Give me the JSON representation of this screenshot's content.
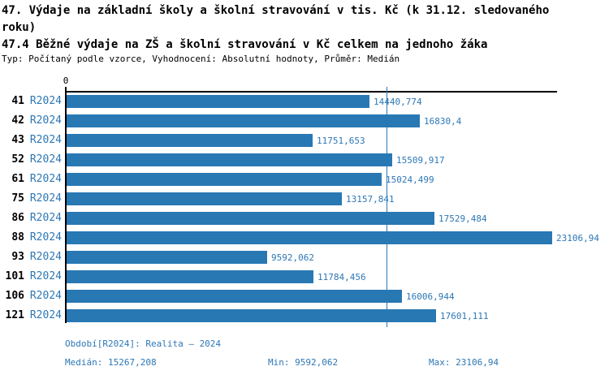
{
  "header": {
    "title": "47. Výdaje na základní školy a školní stravování v tis. Kč (k 31.12. sledovaného roku)",
    "subtitle": "47.4 Běžné výdaje na ZŠ a školní stravování v Kč celkem na jednoho žáka",
    "meta": "Typ: Počítaný podle vzorce, Vyhodnocení: Absolutní hodnoty, Průměr: Medián"
  },
  "colors": {
    "bar": "#2878b4",
    "text_blue": "#2d77b5",
    "axis": "#000000",
    "median_line": "#2878b4"
  },
  "chart_data": {
    "type": "bar",
    "orientation": "horizontal",
    "title": "47.4 Běžné výdaje na ZŠ a školní stravování v Kč celkem na jednoho žáka",
    "categories": [
      "41",
      "42",
      "43",
      "52",
      "61",
      "75",
      "86",
      "88",
      "93",
      "101",
      "106",
      "121"
    ],
    "series_label": "R2024",
    "values": [
      14440.774,
      16830.4,
      11751.653,
      15509.917,
      15024.499,
      13157.841,
      17529.484,
      23106.94,
      9592.062,
      11784.456,
      16006.944,
      17601.111
    ],
    "value_labels": [
      "14440,774",
      "16830,4",
      "11751,653",
      "15509,917",
      "15024,499",
      "13157,841",
      "17529,484",
      "23106,94",
      "9592,062",
      "11784,456",
      "16006,944",
      "17601,111"
    ],
    "x_axis": {
      "min": 0,
      "max_estimated": 23350,
      "zero_label": "0"
    },
    "median_value": 15267.208,
    "grid": false,
    "legend": false
  },
  "footer": {
    "period": "Období[R2024]: Realita – 2024",
    "median": "Medián: 15267,208",
    "min": "Min: 9592,062",
    "max": "Max: 23106,94"
  }
}
